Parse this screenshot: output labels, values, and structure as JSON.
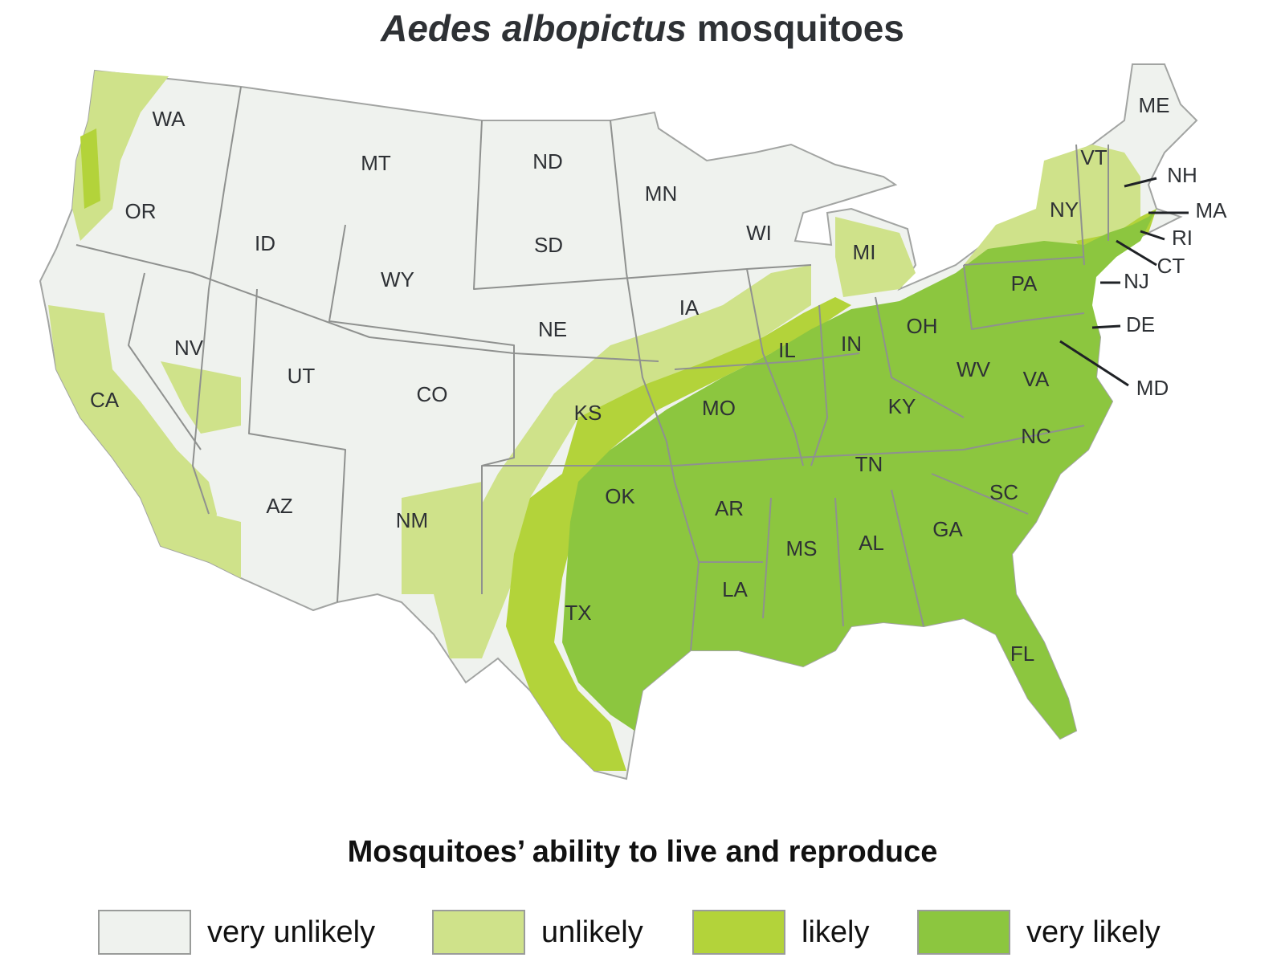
{
  "title": {
    "species": "Aedes albopictus",
    "rest": "mosquitoes"
  },
  "legend": {
    "title": "Mosquitoes’ ability to live and reproduce",
    "items": [
      {
        "label": "very unlikely",
        "color": "#eff2ee"
      },
      {
        "label": "unlikely",
        "color": "#cfe28a"
      },
      {
        "label": "likely",
        "color": "#b3d33a"
      },
      {
        "label": "very likely",
        "color": "#8cc63f"
      }
    ]
  },
  "states": {
    "WA": "WA",
    "OR": "OR",
    "CA": "CA",
    "ID": "ID",
    "NV": "NV",
    "MT": "MT",
    "WY": "WY",
    "UT": "UT",
    "AZ": "AZ",
    "CO": "CO",
    "NM": "NM",
    "ND": "ND",
    "SD": "SD",
    "NE": "NE",
    "KS": "KS",
    "OK": "OK",
    "TX": "TX",
    "MN": "MN",
    "IA": "IA",
    "MO": "MO",
    "AR": "AR",
    "LA": "LA",
    "WI": "WI",
    "IL": "IL",
    "MI": "MI",
    "IN": "IN",
    "OH": "OH",
    "KY": "KY",
    "TN": "TN",
    "MS": "MS",
    "AL": "AL",
    "GA": "GA",
    "FL": "FL",
    "SC": "SC",
    "NC": "NC",
    "VA": "VA",
    "WV": "WV",
    "PA": "PA",
    "NY": "NY",
    "ME": "ME",
    "VT": "VT",
    "NH": "NH",
    "MA": "MA",
    "RI": "RI",
    "CT": "CT",
    "NJ": "NJ",
    "DE": "DE",
    "MD": "MD"
  }
}
